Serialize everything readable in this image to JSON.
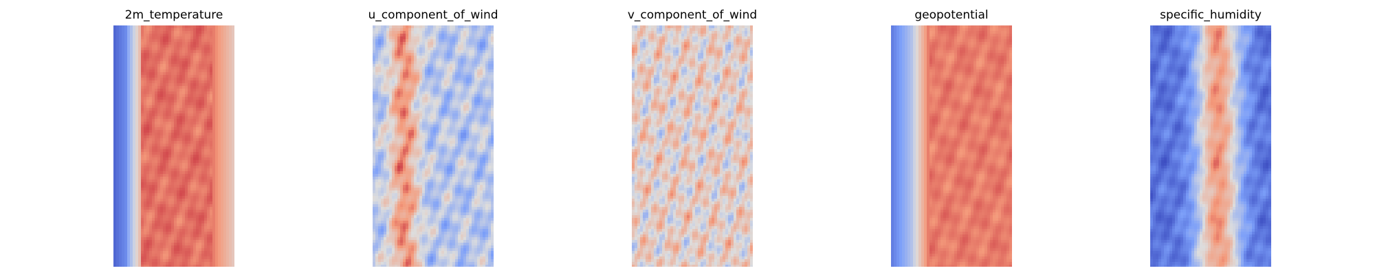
{
  "chart_data": [
    {
      "type": "heatmap",
      "title": "2m_temperature",
      "colormap": "coolwarm",
      "axes": "off",
      "grid": false
    },
    {
      "type": "heatmap",
      "title": "u_component_of_wind",
      "colormap": "coolwarm",
      "axes": "off",
      "grid": false
    },
    {
      "type": "heatmap",
      "title": "v_component_of_wind",
      "colormap": "coolwarm",
      "axes": "off",
      "grid": false
    },
    {
      "type": "heatmap",
      "title": "geopotential",
      "colormap": "coolwarm",
      "axes": "off",
      "grid": false
    },
    {
      "type": "heatmap",
      "title": "specific_humidity",
      "colormap": "coolwarm",
      "axes": "off",
      "grid": false
    }
  ]
}
